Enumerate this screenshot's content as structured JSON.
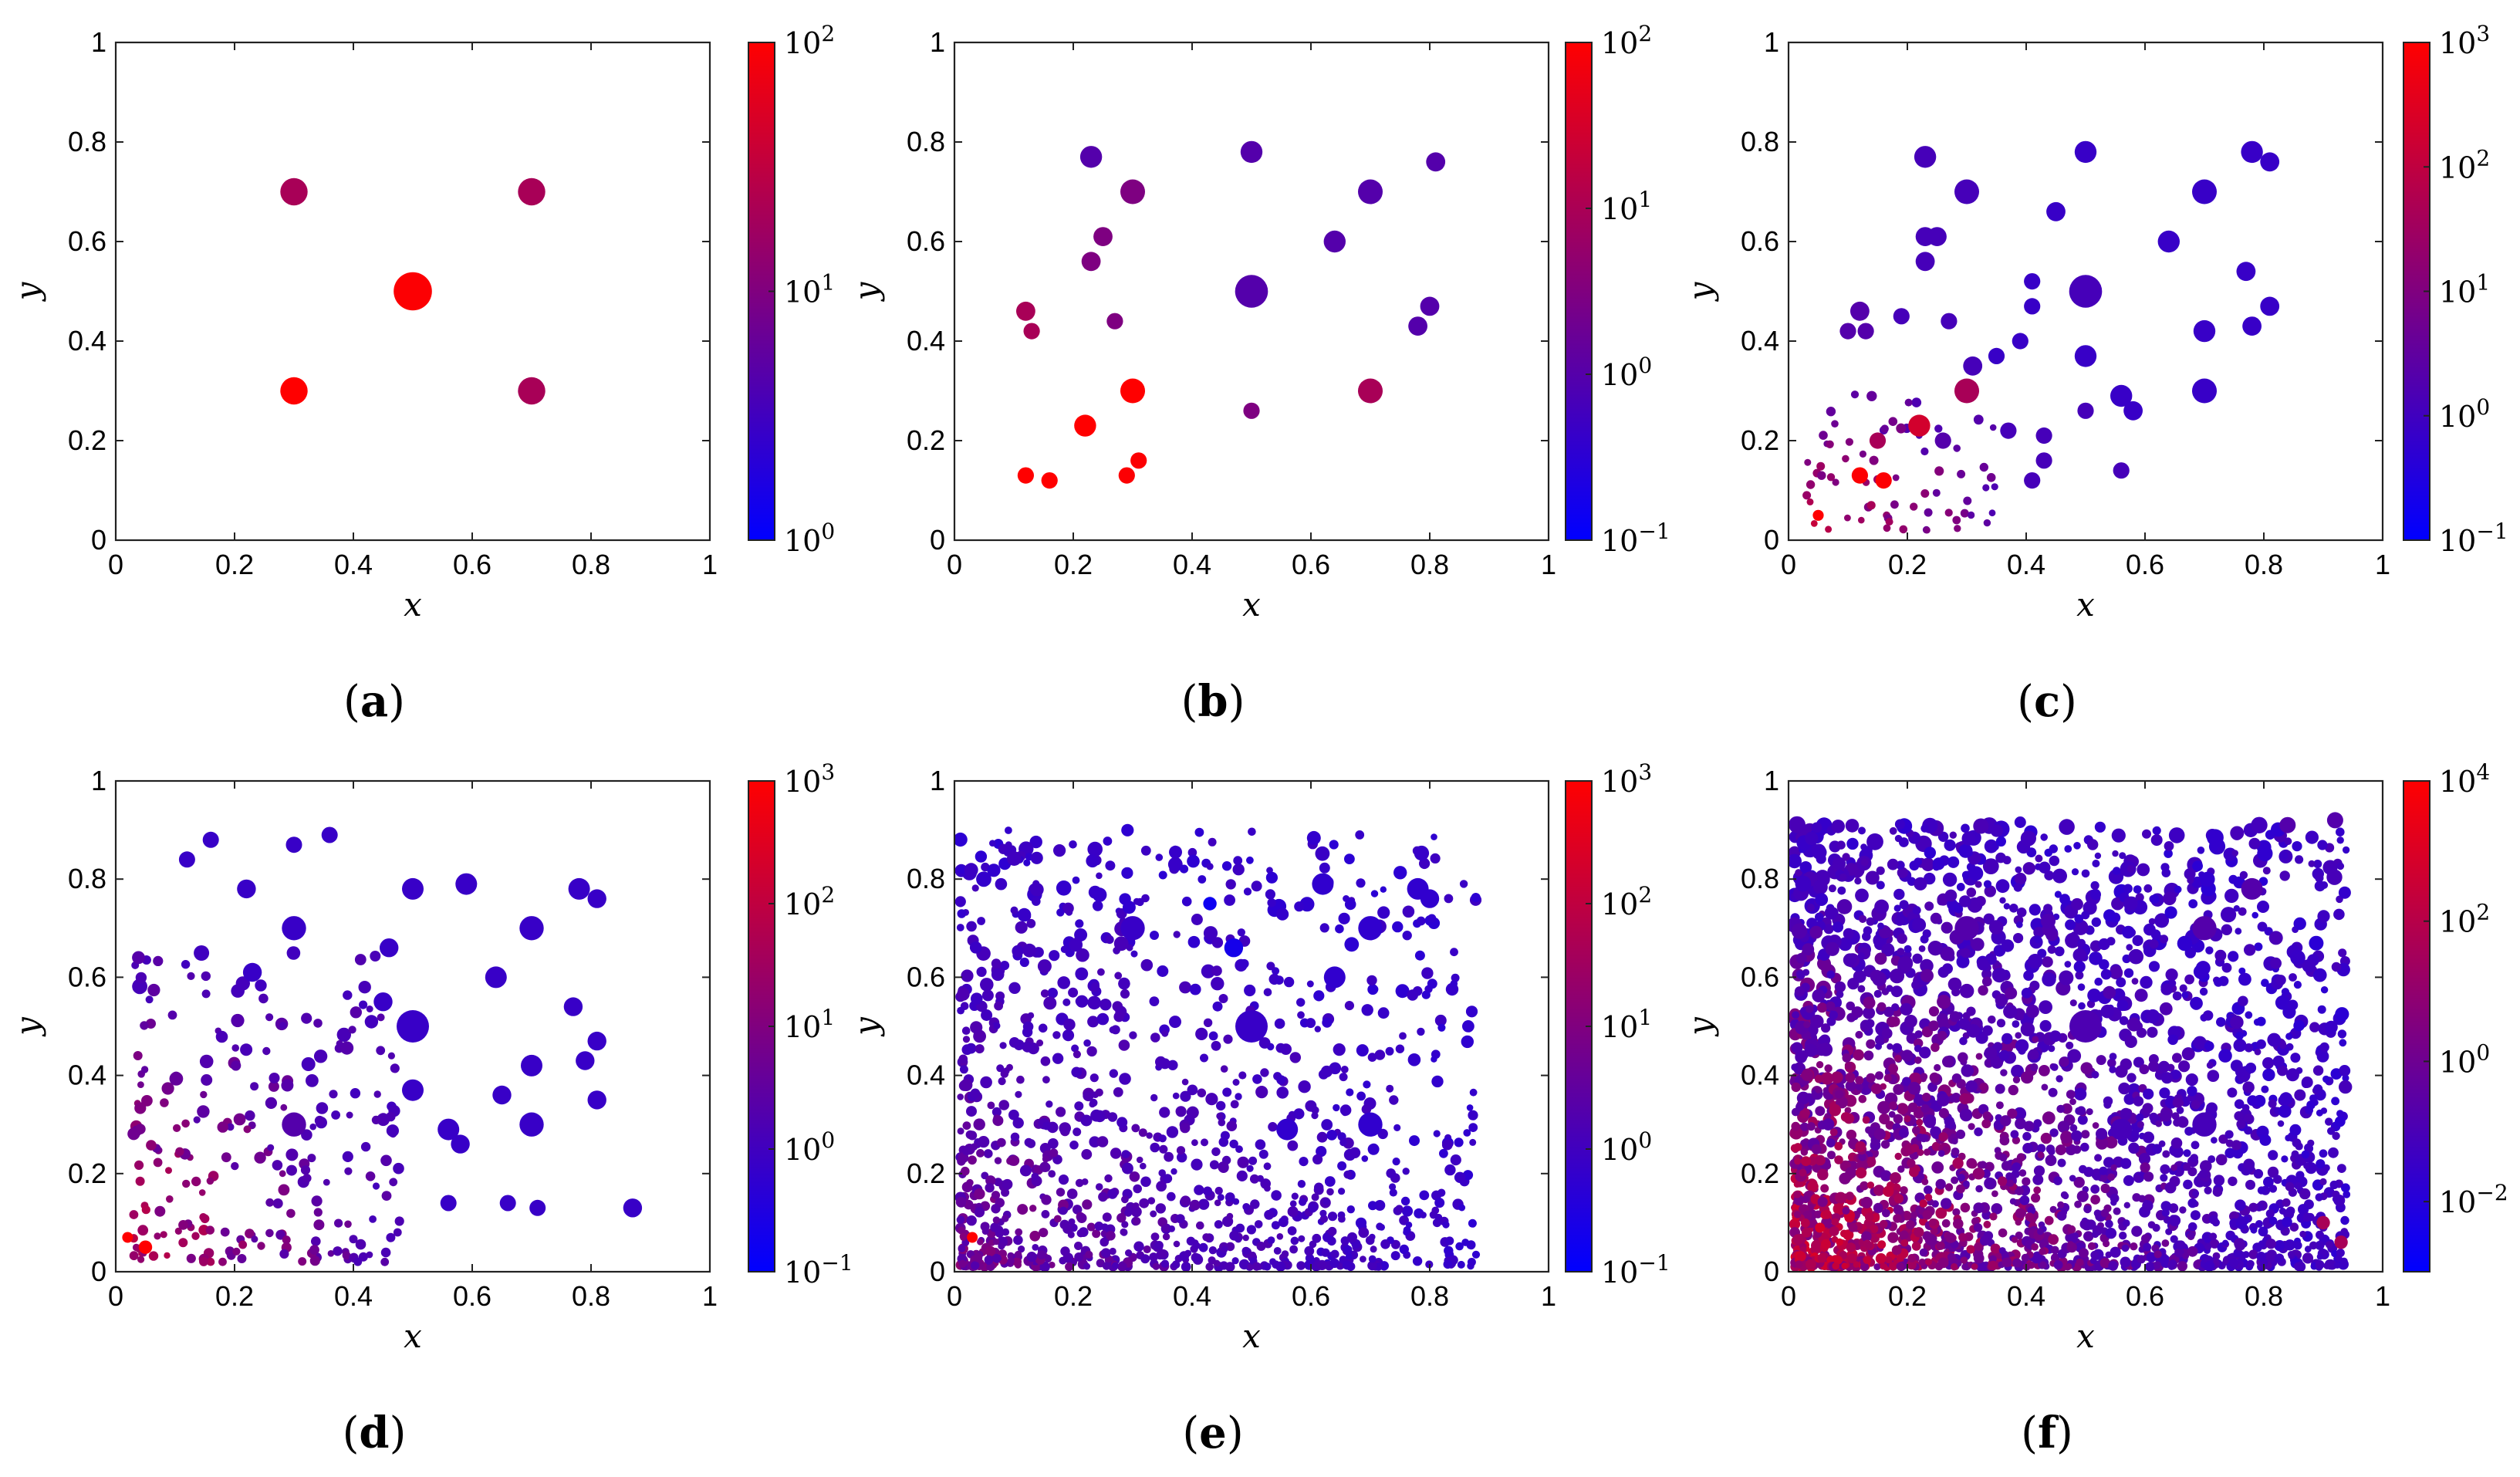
{
  "chart_data": [
    {
      "id": "a",
      "type": "scatter",
      "caption": "(a)",
      "xlabel": "x",
      "ylabel": "y",
      "xlim": [
        0,
        1
      ],
      "ylim": [
        0,
        1
      ],
      "xticks": [
        "0",
        "0.2",
        "0.4",
        "0.6",
        "0.8",
        "1"
      ],
      "yticks": [
        "0",
        "0.2",
        "0.4",
        "0.6",
        "0.8",
        "1"
      ],
      "colorbar": {
        "scale": "log",
        "min_exp": 0,
        "max_exp": 2,
        "tick_exps": [
          0,
          1,
          2
        ],
        "tick_labels": [
          "10^0",
          "10^1",
          "10^2"
        ]
      },
      "points": [
        [
          0.3,
          0.7,
          0.05,
          0.8
        ],
        [
          0.7,
          0.7,
          0.05,
          0.8
        ],
        [
          0.5,
          0.5,
          0.07,
          1.0
        ],
        [
          0.3,
          0.3,
          0.05,
          1.1
        ],
        [
          0.7,
          0.3,
          0.05,
          0.8
        ]
      ],
      "random_points": null
    },
    {
      "id": "b",
      "type": "scatter",
      "caption": "(b)",
      "xlabel": "x",
      "ylabel": "y",
      "xlim": [
        0,
        1
      ],
      "ylim": [
        0,
        1
      ],
      "xticks": [
        "0",
        "0.2",
        "0.4",
        "0.6",
        "0.8",
        "1"
      ],
      "yticks": [
        "0",
        "0.2",
        "0.4",
        "0.6",
        "0.8",
        "1"
      ],
      "colorbar": {
        "scale": "log",
        "min_exp": -1,
        "max_exp": 2,
        "tick_exps": [
          -1,
          0,
          1,
          2
        ],
        "tick_labels": [
          "10^-1",
          "10^0",
          "10^1",
          "10^2"
        ]
      },
      "points": [
        [
          0.23,
          0.77,
          0.04,
          0.6
        ],
        [
          0.5,
          0.78,
          0.04,
          0.6
        ],
        [
          0.81,
          0.76,
          0.035,
          0.6
        ],
        [
          0.3,
          0.7,
          0.045,
          0.7
        ],
        [
          0.7,
          0.7,
          0.045,
          0.6
        ],
        [
          0.25,
          0.61,
          0.035,
          0.7
        ],
        [
          0.64,
          0.6,
          0.04,
          0.6
        ],
        [
          0.23,
          0.56,
          0.035,
          0.7
        ],
        [
          0.5,
          0.5,
          0.06,
          0.6
        ],
        [
          0.12,
          0.46,
          0.035,
          0.8
        ],
        [
          0.8,
          0.47,
          0.035,
          0.6
        ],
        [
          0.13,
          0.42,
          0.03,
          0.8
        ],
        [
          0.27,
          0.44,
          0.03,
          0.7
        ],
        [
          0.78,
          0.43,
          0.035,
          0.6
        ],
        [
          0.3,
          0.3,
          0.045,
          1.3
        ],
        [
          0.7,
          0.3,
          0.045,
          0.8
        ],
        [
          0.5,
          0.26,
          0.03,
          0.7
        ],
        [
          0.22,
          0.23,
          0.04,
          1.4
        ],
        [
          0.31,
          0.16,
          0.03,
          1.0
        ],
        [
          0.29,
          0.13,
          0.03,
          1.0
        ],
        [
          0.12,
          0.13,
          0.03,
          1.6
        ],
        [
          0.16,
          0.12,
          0.03,
          1.6
        ]
      ],
      "random_points": null
    },
    {
      "id": "c",
      "type": "scatter",
      "caption": "(c)",
      "xlabel": "x",
      "ylabel": "y",
      "xlim": [
        0,
        1
      ],
      "ylim": [
        0,
        1
      ],
      "xticks": [
        "0",
        "0.2",
        "0.4",
        "0.6",
        "0.8",
        "1"
      ],
      "yticks": [
        "0",
        "0.2",
        "0.4",
        "0.6",
        "0.8",
        "1"
      ],
      "colorbar": {
        "scale": "log",
        "min_exp": -1,
        "max_exp": 3,
        "tick_exps": [
          -1,
          0,
          1,
          2,
          3
        ],
        "tick_labels": [
          "10^-1",
          "10^0",
          "10^1",
          "10^2",
          "10^3"
        ]
      },
      "points": [
        [
          0.23,
          0.77,
          0.04,
          0.5
        ],
        [
          0.5,
          0.78,
          0.04,
          0.4
        ],
        [
          0.78,
          0.78,
          0.04,
          0.4
        ],
        [
          0.81,
          0.76,
          0.035,
          0.4
        ],
        [
          0.3,
          0.7,
          0.045,
          0.5
        ],
        [
          0.7,
          0.7,
          0.045,
          0.4
        ],
        [
          0.45,
          0.66,
          0.035,
          0.4
        ],
        [
          0.23,
          0.61,
          0.035,
          0.5
        ],
        [
          0.25,
          0.61,
          0.035,
          0.5
        ],
        [
          0.64,
          0.6,
          0.04,
          0.4
        ],
        [
          0.23,
          0.56,
          0.035,
          0.5
        ],
        [
          0.77,
          0.54,
          0.035,
          0.4
        ],
        [
          0.5,
          0.5,
          0.06,
          0.5
        ],
        [
          0.41,
          0.52,
          0.03,
          0.4
        ],
        [
          0.81,
          0.47,
          0.035,
          0.4
        ],
        [
          0.41,
          0.47,
          0.03,
          0.4
        ],
        [
          0.19,
          0.45,
          0.03,
          0.5
        ],
        [
          0.12,
          0.46,
          0.035,
          0.6
        ],
        [
          0.27,
          0.44,
          0.03,
          0.5
        ],
        [
          0.1,
          0.42,
          0.03,
          0.6
        ],
        [
          0.78,
          0.43,
          0.035,
          0.4
        ],
        [
          0.7,
          0.42,
          0.04,
          0.4
        ],
        [
          0.13,
          0.42,
          0.03,
          0.6
        ],
        [
          0.39,
          0.4,
          0.03,
          0.4
        ],
        [
          0.35,
          0.37,
          0.03,
          0.4
        ],
        [
          0.5,
          0.37,
          0.04,
          0.4
        ],
        [
          0.31,
          0.35,
          0.035,
          0.5
        ],
        [
          0.3,
          0.3,
          0.045,
          0.8
        ],
        [
          0.7,
          0.3,
          0.045,
          0.4
        ],
        [
          0.56,
          0.29,
          0.04,
          0.4
        ],
        [
          0.58,
          0.26,
          0.035,
          0.4
        ],
        [
          0.5,
          0.26,
          0.03,
          0.5
        ],
        [
          0.22,
          0.23,
          0.04,
          0.9
        ],
        [
          0.37,
          0.22,
          0.03,
          0.5
        ],
        [
          0.15,
          0.2,
          0.03,
          0.8
        ],
        [
          0.43,
          0.21,
          0.03,
          0.5
        ],
        [
          0.26,
          0.2,
          0.03,
          0.6
        ],
        [
          0.56,
          0.14,
          0.03,
          0.5
        ],
        [
          0.43,
          0.16,
          0.03,
          0.5
        ],
        [
          0.41,
          0.12,
          0.03,
          0.5
        ],
        [
          0.12,
          0.13,
          0.03,
          1.0
        ],
        [
          0.16,
          0.12,
          0.03,
          1.0
        ],
        [
          0.05,
          0.05,
          0.02,
          1.5
        ]
      ],
      "random_points": {
        "count": 70,
        "seed": 3,
        "x_range": [
          0.03,
          0.35
        ],
        "y_range": [
          0.02,
          0.3
        ],
        "size_range": [
          0.012,
          0.02
        ],
        "color_range": [
          0.55,
          0.9
        ]
      }
    },
    {
      "id": "d",
      "type": "scatter",
      "caption": "(d)",
      "xlabel": "x",
      "ylabel": "y",
      "xlim": [
        0,
        1
      ],
      "ylim": [
        0,
        1
      ],
      "xticks": [
        "0",
        "0.2",
        "0.4",
        "0.6",
        "0.8",
        "1"
      ],
      "yticks": [
        "0",
        "0.2",
        "0.4",
        "0.6",
        "0.8",
        "1"
      ],
      "colorbar": {
        "scale": "log",
        "min_exp": -1,
        "max_exp": 3,
        "tick_exps": [
          -1,
          0,
          1,
          2,
          3
        ],
        "tick_labels": [
          "10^-1",
          "10^0",
          "10^1",
          "10^2",
          "10^3"
        ]
      },
      "points": [
        [
          0.16,
          0.88,
          0.03,
          0.4
        ],
        [
          0.36,
          0.89,
          0.03,
          0.4
        ],
        [
          0.3,
          0.87,
          0.03,
          0.4
        ],
        [
          0.12,
          0.84,
          0.03,
          0.4
        ],
        [
          0.22,
          0.78,
          0.035,
          0.4
        ],
        [
          0.5,
          0.78,
          0.04,
          0.4
        ],
        [
          0.59,
          0.79,
          0.04,
          0.4
        ],
        [
          0.78,
          0.78,
          0.04,
          0.4
        ],
        [
          0.81,
          0.76,
          0.035,
          0.4
        ],
        [
          0.3,
          0.7,
          0.045,
          0.4
        ],
        [
          0.7,
          0.7,
          0.045,
          0.4
        ],
        [
          0.46,
          0.66,
          0.035,
          0.4
        ],
        [
          0.23,
          0.61,
          0.035,
          0.4
        ],
        [
          0.64,
          0.6,
          0.04,
          0.4
        ],
        [
          0.5,
          0.5,
          0.06,
          0.4
        ],
        [
          0.45,
          0.55,
          0.035,
          0.4
        ],
        [
          0.77,
          0.54,
          0.035,
          0.4
        ],
        [
          0.81,
          0.47,
          0.035,
          0.4
        ],
        [
          0.79,
          0.43,
          0.035,
          0.4
        ],
        [
          0.7,
          0.42,
          0.04,
          0.4
        ],
        [
          0.3,
          0.3,
          0.045,
          0.6
        ],
        [
          0.7,
          0.3,
          0.045,
          0.4
        ],
        [
          0.56,
          0.29,
          0.04,
          0.4
        ],
        [
          0.58,
          0.26,
          0.035,
          0.4
        ],
        [
          0.5,
          0.37,
          0.04,
          0.4
        ],
        [
          0.65,
          0.36,
          0.035,
          0.4
        ],
        [
          0.81,
          0.35,
          0.035,
          0.4
        ],
        [
          0.87,
          0.13,
          0.035,
          0.4
        ],
        [
          0.71,
          0.13,
          0.03,
          0.4
        ],
        [
          0.66,
          0.14,
          0.03,
          0.4
        ],
        [
          0.56,
          0.14,
          0.03,
          0.4
        ],
        [
          0.05,
          0.05,
          0.025,
          1.5
        ],
        [
          0.02,
          0.07,
          0.02,
          1.5
        ]
      ],
      "random_points": {
        "count": 230,
        "seed": 4,
        "x_range": [
          0.03,
          0.48
        ],
        "y_range": [
          0.02,
          0.65
        ],
        "size_range": [
          0.012,
          0.03
        ],
        "color_range": [
          0.45,
          0.9
        ]
      }
    },
    {
      "id": "e",
      "type": "scatter",
      "caption": "(e)",
      "xlabel": "x",
      "ylabel": "y",
      "xlim": [
        0,
        1
      ],
      "ylim": [
        0,
        1
      ],
      "xticks": [
        "0",
        "0.2",
        "0.4",
        "0.6",
        "0.8",
        "1"
      ],
      "yticks": [
        "0",
        "0.2",
        "0.4",
        "0.6",
        "0.8",
        "1"
      ],
      "colorbar": {
        "scale": "log",
        "min_exp": -1,
        "max_exp": 3,
        "tick_exps": [
          -1,
          0,
          1,
          2,
          3
        ],
        "tick_labels": [
          "10^-1",
          "10^0",
          "10^1",
          "10^2",
          "10^3"
        ]
      },
      "points": [
        [
          0.47,
          0.66,
          0.035,
          0.15
        ],
        [
          0.43,
          0.75,
          0.025,
          0.1
        ],
        [
          0.5,
          0.5,
          0.06,
          0.4
        ],
        [
          0.7,
          0.7,
          0.045,
          0.35
        ],
        [
          0.62,
          0.79,
          0.04,
          0.35
        ],
        [
          0.78,
          0.78,
          0.04,
          0.35
        ],
        [
          0.8,
          0.76,
          0.035,
          0.35
        ],
        [
          0.64,
          0.6,
          0.04,
          0.35
        ],
        [
          0.56,
          0.29,
          0.04,
          0.35
        ],
        [
          0.7,
          0.3,
          0.045,
          0.35
        ],
        [
          0.3,
          0.7,
          0.045,
          0.4
        ],
        [
          0.03,
          0.07,
          0.02,
          1.5
        ]
      ],
      "random_points": {
        "count": 1100,
        "seed": 5,
        "x_range": [
          0.01,
          0.88
        ],
        "y_range": [
          0.01,
          0.9
        ],
        "size_range": [
          0.012,
          0.03
        ],
        "color_range": [
          0.3,
          0.75
        ]
      }
    },
    {
      "id": "f",
      "type": "scatter",
      "caption": "(f)",
      "xlabel": "x",
      "ylabel": "y",
      "xlim": [
        0,
        1
      ],
      "ylim": [
        0,
        1
      ],
      "xticks": [
        "0",
        "0.2",
        "0.4",
        "0.6",
        "0.8",
        "1"
      ],
      "yticks": [
        "0",
        "0.2",
        "0.4",
        "0.6",
        "0.8",
        "1"
      ],
      "colorbar": {
        "scale": "log",
        "min_exp": -3,
        "max_exp": 4,
        "tick_exps": [
          -2,
          0,
          2,
          4
        ],
        "tick_labels": [
          "10^-2",
          "10^0",
          "10^2",
          "10^4"
        ]
      },
      "points": [
        [
          0.5,
          0.5,
          0.06,
          0.55
        ],
        [
          0.7,
          0.3,
          0.045,
          0.5
        ],
        [
          0.56,
          0.29,
          0.04,
          0.5
        ],
        [
          0.7,
          0.7,
          0.045,
          0.6
        ],
        [
          0.3,
          0.7,
          0.045,
          0.6
        ],
        [
          0.78,
          0.78,
          0.04,
          0.6
        ],
        [
          0.92,
          0.92,
          0.03,
          0.6
        ],
        [
          0.84,
          0.91,
          0.03,
          0.6
        ],
        [
          0.93,
          0.06,
          0.025,
          0.8
        ],
        [
          0.9,
          0.1,
          0.025,
          0.8
        ]
      ],
      "random_points": {
        "count": 2600,
        "seed": 6,
        "x_range": [
          0.01,
          0.94
        ],
        "y_range": [
          0.01,
          0.92
        ],
        "size_range": [
          0.012,
          0.032
        ],
        "color_range": [
          0.3,
          0.95
        ]
      }
    }
  ]
}
